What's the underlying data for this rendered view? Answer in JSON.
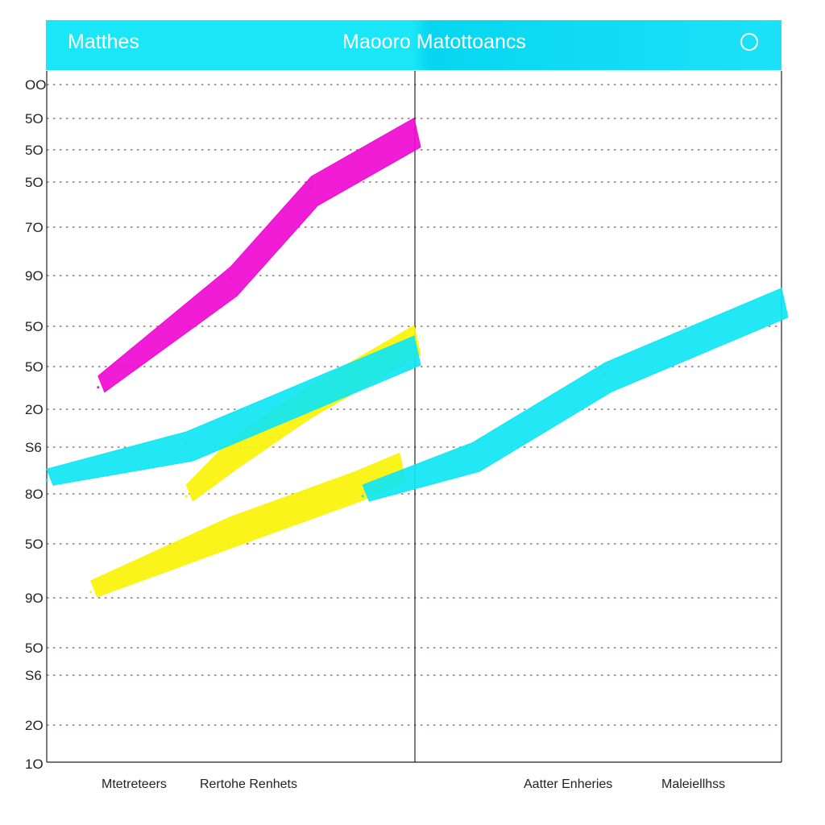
{
  "header": {
    "left_label": "Matthes",
    "title": "Maooro Matottoancs",
    "circle_icon": "circle-outline-icon"
  },
  "colors": {
    "header": "#19e6f6",
    "magenta": "#f00ad2",
    "yellow": "#fbf308",
    "cyan": "#0fe6f4",
    "grid": "#8a7670"
  },
  "chart_data": {
    "type": "area",
    "title": "Maooro Matottoancs",
    "xlabel": "",
    "ylabel": "",
    "grid": true,
    "legend": "none",
    "y_tick_labels": [
      "OO",
      "5O",
      "5O",
      "5O",
      "7O",
      "9O",
      "5O",
      "5O",
      "2O",
      "S6",
      "8O",
      "5O",
      "9O",
      "5O",
      "S6",
      "2O",
      "1O"
    ],
    "categories": [
      "Mtetreteers",
      "Rertohe Renhets",
      "Aatter Enheries",
      "Maleiellhss"
    ],
    "series": [
      {
        "color": "#f00ad2",
        "points": [
          [
            0.07,
            7.05
          ],
          [
            0.25,
            9.1
          ],
          [
            0.36,
            10.8
          ],
          [
            0.5,
            11.9
          ]
        ]
      },
      {
        "color": "#fbf308",
        "points": [
          [
            0.19,
            5.0
          ],
          [
            0.25,
            5.85
          ],
          [
            0.35,
            6.8
          ],
          [
            0.5,
            8.0
          ]
        ]
      },
      {
        "color": "#fbf308",
        "points": [
          [
            0.06,
            3.2
          ],
          [
            0.25,
            4.4
          ],
          [
            0.42,
            5.25
          ],
          [
            0.48,
            5.6
          ]
        ]
      },
      {
        "color": "#0fe6f4",
        "points": [
          [
            0.0,
            5.3
          ],
          [
            0.19,
            6.0
          ],
          [
            0.5,
            7.8
          ]
        ]
      },
      {
        "color": "#0fe6f4",
        "points": [
          [
            0.43,
            5.0
          ],
          [
            0.58,
            5.8
          ],
          [
            0.76,
            7.3
          ],
          [
            1.0,
            8.7
          ]
        ]
      }
    ]
  }
}
